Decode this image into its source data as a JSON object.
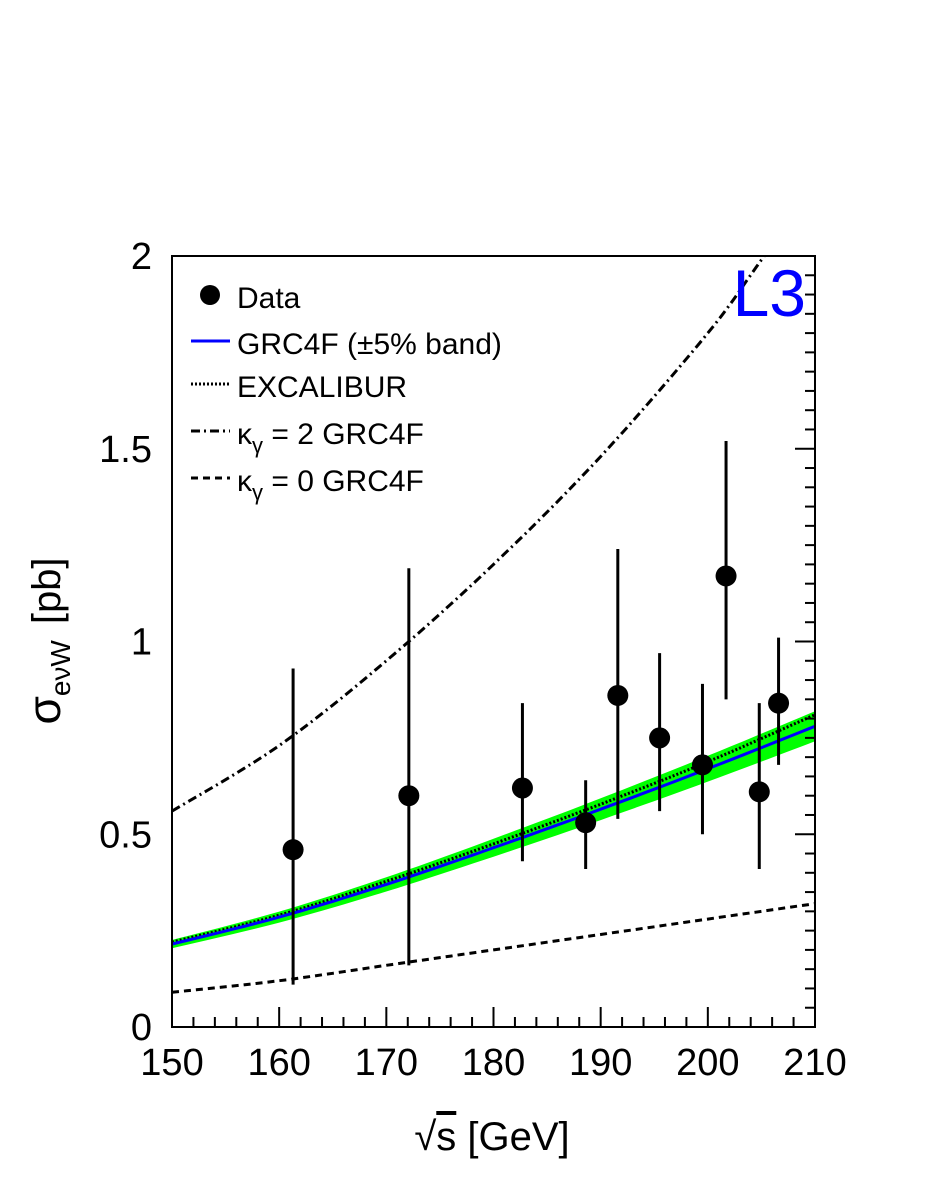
{
  "chart_data": {
    "type": "scatter",
    "title": "",
    "logo": "L3",
    "xlabel": "√s [GeV]",
    "xlabel_parts": {
      "root": "√",
      "var": "s",
      "unit": " [GeV]"
    },
    "ylabel_parts": {
      "sigma": "σ",
      "sub": "eνW",
      "unit": "[pb]"
    },
    "xlim": [
      150,
      210
    ],
    "ylim": [
      0,
      2
    ],
    "xticks": [
      150,
      160,
      170,
      180,
      190,
      200,
      210
    ],
    "yticks": [
      0,
      0.5,
      1,
      1.5,
      2
    ],
    "xtick_labels": [
      "150",
      "160",
      "170",
      "180",
      "190",
      "200",
      "210"
    ],
    "ytick_labels": [
      "0",
      "0.5",
      "1",
      "1.5",
      "2"
    ],
    "legend": {
      "placement": "top-left",
      "entries": [
        {
          "key": "data",
          "label": "Data",
          "style": "marker"
        },
        {
          "key": "grc4f",
          "label": "GRC4F (±5% band)",
          "style": "solid"
        },
        {
          "key": "excalibur",
          "label": "EXCALIBUR",
          "style": "dotted"
        },
        {
          "key": "kg2",
          "label": "κ",
          "sub": "γ",
          "tail": " = 2 GRC4F",
          "style": "dashdot"
        },
        {
          "key": "kg0",
          "label": "κ",
          "sub": "γ",
          "tail": " = 0 GRC4F",
          "style": "dashed"
        }
      ]
    },
    "data_points": [
      {
        "x": 161.3,
        "y": 0.46,
        "lo": 0.11,
        "hi": 0.93
      },
      {
        "x": 172.1,
        "y": 0.6,
        "lo": 0.16,
        "hi": 1.19
      },
      {
        "x": 182.7,
        "y": 0.62,
        "lo": 0.43,
        "hi": 0.84
      },
      {
        "x": 188.6,
        "y": 0.53,
        "lo": 0.41,
        "hi": 0.64
      },
      {
        "x": 191.6,
        "y": 0.86,
        "lo": 0.54,
        "hi": 1.24
      },
      {
        "x": 195.5,
        "y": 0.75,
        "lo": 0.56,
        "hi": 0.97
      },
      {
        "x": 199.5,
        "y": 0.68,
        "lo": 0.5,
        "hi": 0.89
      },
      {
        "x": 201.7,
        "y": 1.17,
        "lo": 0.85,
        "hi": 1.52
      },
      {
        "x": 204.8,
        "y": 0.61,
        "lo": 0.41,
        "hi": 0.84
      },
      {
        "x": 206.6,
        "y": 0.84,
        "lo": 0.68,
        "hi": 1.01
      }
    ],
    "series": [
      {
        "name": "GRC4F (±5% band)",
        "style": "solid",
        "color": "#0000ff",
        "band_fraction": 0.05,
        "band_color": "#00ff00",
        "x": [
          150,
          160,
          170,
          180,
          190,
          200,
          210
        ],
        "values": [
          0.215,
          0.285,
          0.37,
          0.465,
          0.565,
          0.67,
          0.78
        ]
      },
      {
        "name": "EXCALIBUR",
        "style": "dotted",
        "color": "#000000",
        "x": [
          150,
          160,
          170,
          180,
          190,
          200,
          210
        ],
        "values": [
          0.22,
          0.29,
          0.378,
          0.475,
          0.578,
          0.688,
          0.81
        ]
      },
      {
        "name": "κγ = 2 GRC4F",
        "style": "dashdot",
        "color": "#000000",
        "x": [
          150,
          160,
          170,
          180,
          190,
          200,
          205,
          210
        ],
        "values": [
          0.56,
          0.73,
          0.95,
          1.2,
          1.48,
          1.8,
          1.99,
          2.18
        ]
      },
      {
        "name": "κγ = 0 GRC4F",
        "style": "dashed",
        "color": "#000000",
        "x": [
          150,
          160,
          170,
          180,
          190,
          200,
          210
        ],
        "values": [
          0.09,
          0.12,
          0.16,
          0.2,
          0.24,
          0.28,
          0.32
        ]
      }
    ],
    "grid": false,
    "colors": {
      "axis": "#000000",
      "logo": "#0000ff",
      "band": "#00ff00",
      "grc4f": "#0000ff",
      "marker": "#000000"
    }
  }
}
